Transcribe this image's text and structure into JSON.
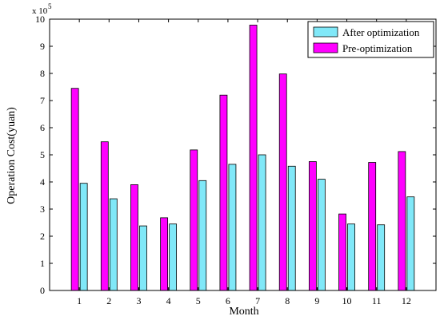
{
  "chart_data": {
    "type": "bar",
    "title": "",
    "xlabel": "Month",
    "ylabel": "Operation Cost(yuan)",
    "y_multiplier": "x 10",
    "y_multiplier_exponent": "5",
    "ylim": [
      0,
      10
    ],
    "yticks": [
      "0",
      "1",
      "2",
      "3",
      "4",
      "5",
      "6",
      "7",
      "8",
      "9",
      "10"
    ],
    "categories": [
      "1",
      "2",
      "3",
      "4",
      "5",
      "6",
      "7",
      "8",
      "9",
      "10",
      "11",
      "12"
    ],
    "grid": false,
    "legend_position": "top-right",
    "series": [
      {
        "name": "Pre-optimization",
        "color": "#ff00ff",
        "values": [
          7.45,
          5.48,
          3.9,
          2.68,
          5.18,
          7.2,
          9.78,
          7.98,
          4.75,
          2.82,
          4.72,
          5.12
        ]
      },
      {
        "name": "After optimization",
        "color": "#80e8f8",
        "values": [
          3.95,
          3.38,
          2.38,
          2.45,
          4.05,
          4.65,
          5.0,
          4.58,
          4.1,
          2.45,
          2.42,
          3.45
        ]
      }
    ],
    "legend_order": [
      1,
      0
    ]
  }
}
